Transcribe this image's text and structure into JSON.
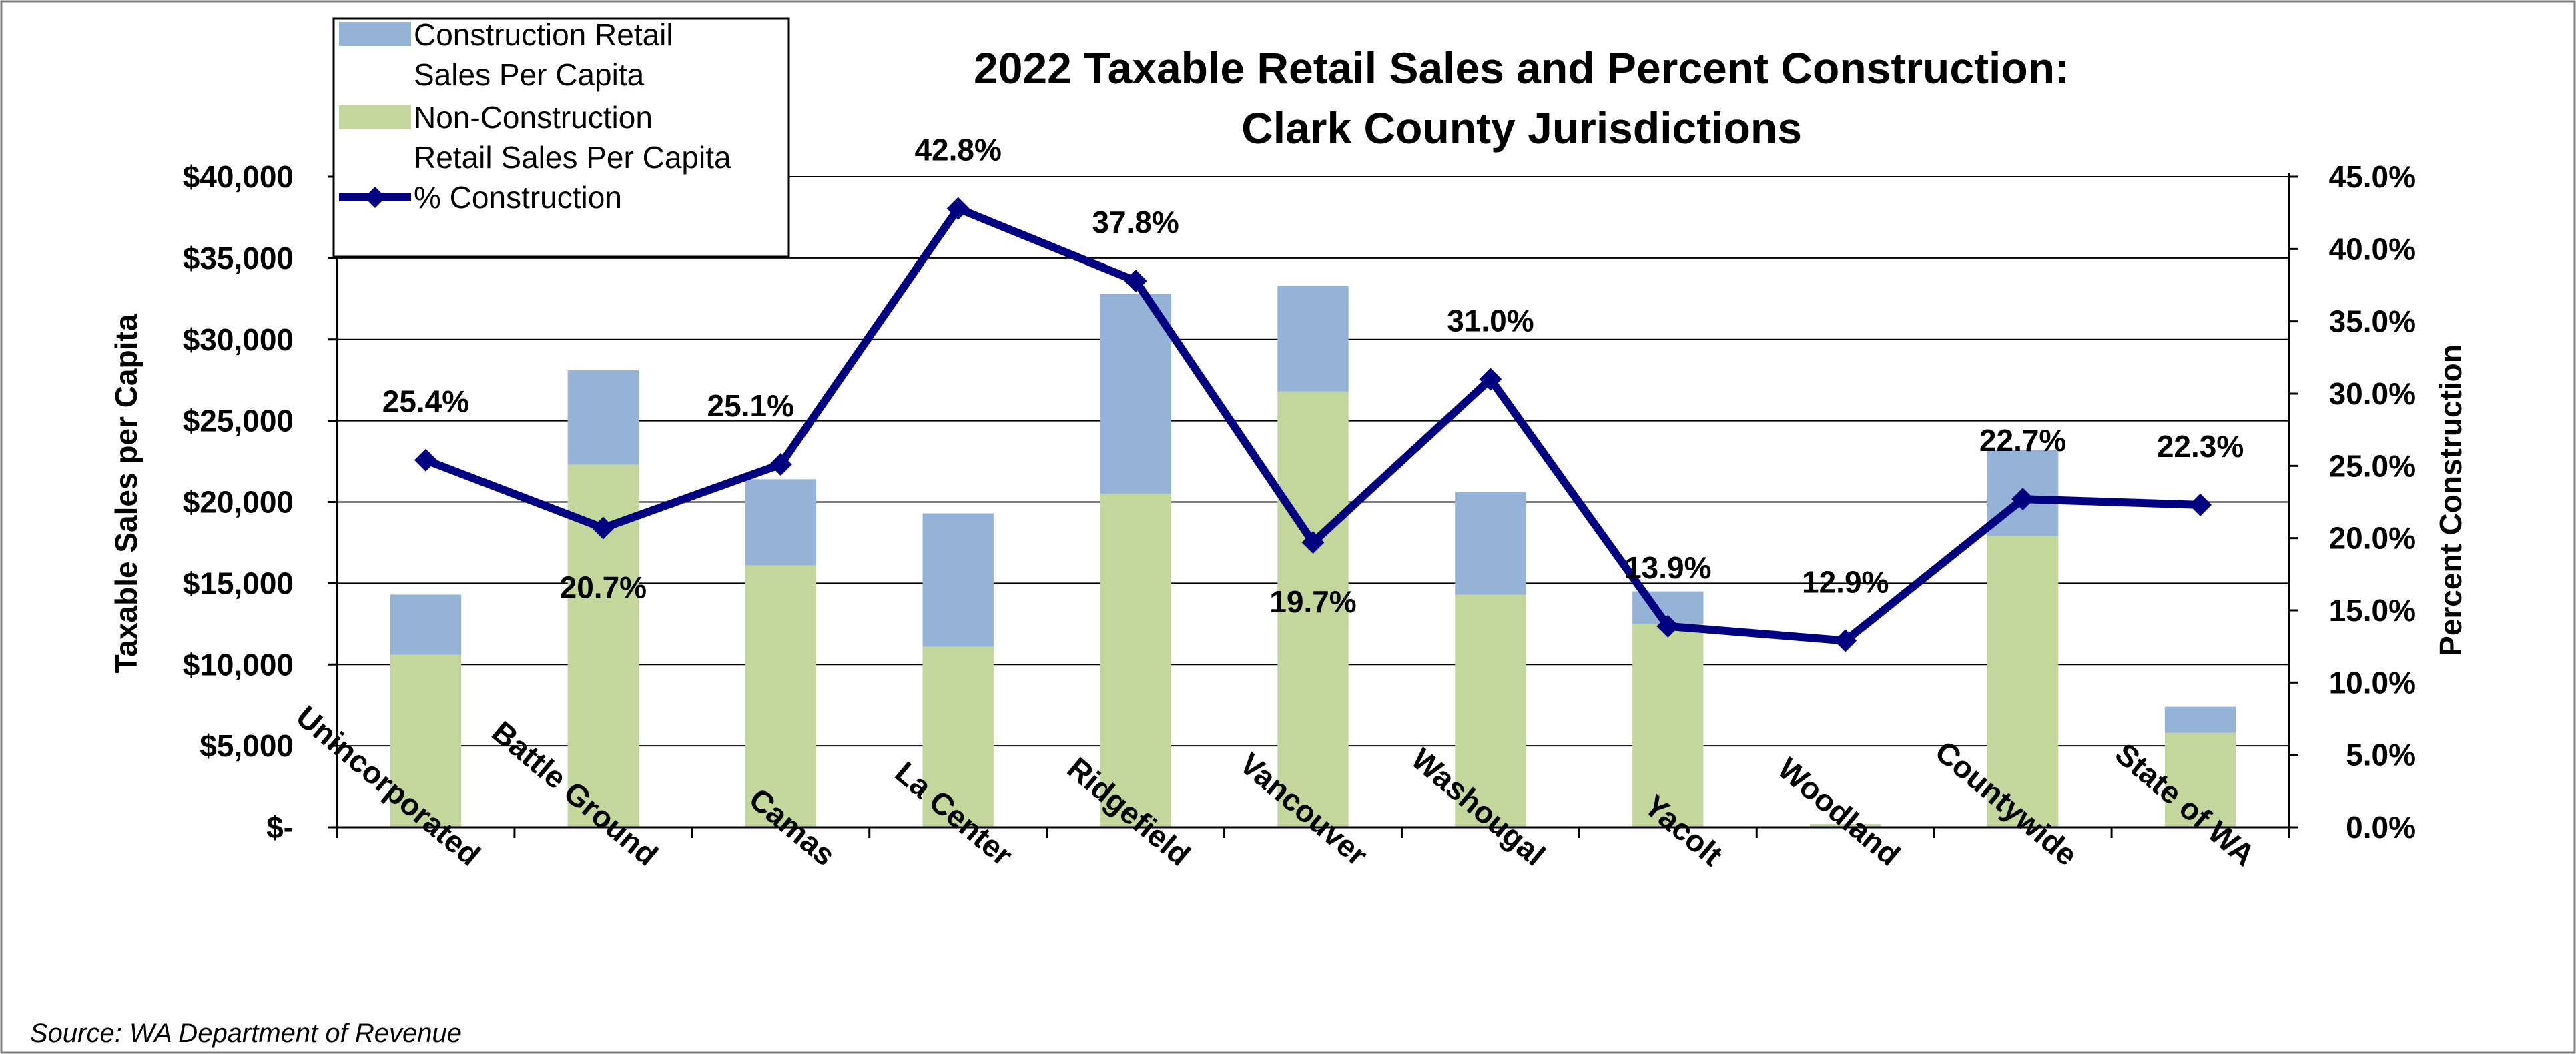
{
  "chart_data": {
    "type": "bar",
    "title_line1": "2022 Taxable Retail Sales and Percent Construction:",
    "title_line2": "Clark County Jurisdictions",
    "ylabel": "Taxable Sales per Capita",
    "y2label": "Percent Construction",
    "source": "Source: WA Department of Revenue",
    "ylim": [
      0,
      40000
    ],
    "y2lim": [
      0,
      45
    ],
    "y_ticks": [
      {
        "value": 0,
        "label": "$-"
      },
      {
        "value": 5000,
        "label": "$5,000"
      },
      {
        "value": 10000,
        "label": "$10,000"
      },
      {
        "value": 15000,
        "label": "$15,000"
      },
      {
        "value": 20000,
        "label": "$20,000"
      },
      {
        "value": 25000,
        "label": "$25,000"
      },
      {
        "value": 30000,
        "label": "$30,000"
      },
      {
        "value": 35000,
        "label": "$35,000"
      },
      {
        "value": 40000,
        "label": "$40,000"
      }
    ],
    "y2_ticks": [
      {
        "value": 0,
        "label": "0.0%"
      },
      {
        "value": 5,
        "label": "5.0%"
      },
      {
        "value": 10,
        "label": "10.0%"
      },
      {
        "value": 15,
        "label": "15.0%"
      },
      {
        "value": 20,
        "label": "20.0%"
      },
      {
        "value": 25,
        "label": "25.0%"
      },
      {
        "value": 30,
        "label": "30.0%"
      },
      {
        "value": 35,
        "label": "35.0%"
      },
      {
        "value": 40,
        "label": "40.0%"
      },
      {
        "value": 45,
        "label": "45.0%"
      }
    ],
    "categories": [
      "Unincorporated",
      "Battle Ground",
      "Camas",
      "La Center",
      "Ridgefield",
      "Vancouver",
      "Washougal",
      "Yacolt",
      "Woodland",
      "Countywide",
      "State of WA"
    ],
    "series": [
      {
        "name_lines": [
          "Non-Construction",
          "Retail Sales Per Capita"
        ],
        "kind": "bar-stacked",
        "color": "#c3d69b",
        "values": [
          10600,
          22300,
          16100,
          11100,
          20500,
          26800,
          14300,
          12500,
          200,
          17900,
          5800
        ]
      },
      {
        "name_lines": [
          "Construction Retail",
          "Sales Per Capita"
        ],
        "kind": "bar-stacked",
        "color": "#95b3d7",
        "values": [
          3700,
          5800,
          5300,
          8200,
          12300,
          6500,
          6300,
          2000,
          0,
          5300,
          1600
        ]
      },
      {
        "name_lines": [
          "% Construction"
        ],
        "kind": "line",
        "axis": "right",
        "color": "#000080",
        "values": [
          25.4,
          20.7,
          25.1,
          42.8,
          37.8,
          19.7,
          31.0,
          13.9,
          12.9,
          22.7,
          22.3
        ],
        "labels": [
          "25.4%",
          "20.7%",
          "25.1%",
          "42.8%",
          "37.8%",
          "19.7%",
          "31.0%",
          "13.9%",
          "12.9%",
          "22.7%",
          "22.3%"
        ]
      }
    ],
    "grid": true,
    "legend_position": "top-left"
  }
}
